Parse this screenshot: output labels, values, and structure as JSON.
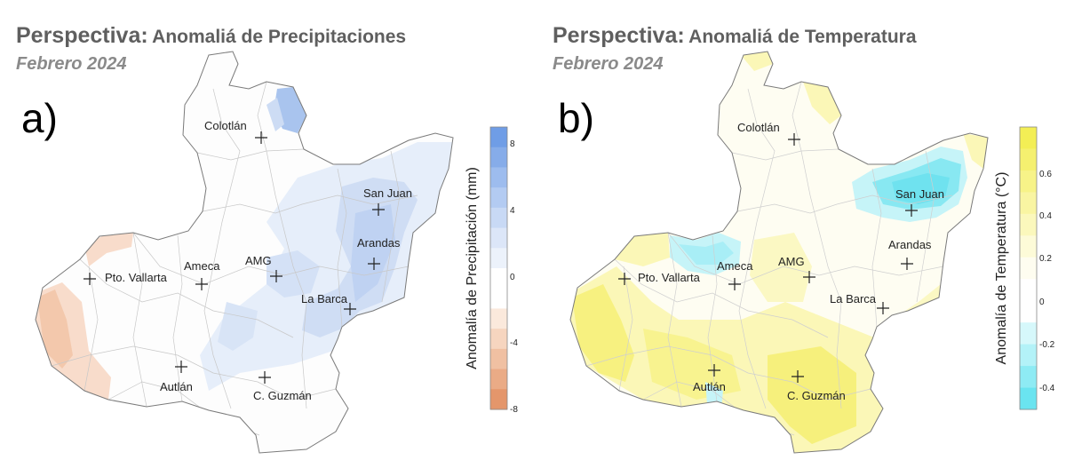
{
  "panels": [
    {
      "title_lead": "Perspectiva:",
      "title_rest": "Anomaliá de Precipitaciones",
      "subtitle": "Febrero 2024",
      "label": "a)",
      "colorbar": {
        "title": "Anomalía de Precipitación (mm)",
        "ticks": [
          "8",
          "4",
          "0",
          "-4",
          "-8"
        ],
        "colors": [
          "#6f9de6",
          "#86ace9",
          "#9dbcee",
          "#b3cbf2",
          "#c8d9f5",
          "#dce6f8",
          "#ecf2fb",
          "#ffffff",
          "#ffffff",
          "#fbe9dc",
          "#f6d5bf",
          "#f0c0a2",
          "#eaab86",
          "#e4966b"
        ]
      },
      "cities": [
        {
          "name": "Colotlán"
        },
        {
          "name": "San Juan"
        },
        {
          "name": "Arandas"
        },
        {
          "name": "AMG"
        },
        {
          "name": "Ameca"
        },
        {
          "name": "Pto. Vallarta"
        },
        {
          "name": "La Barca"
        },
        {
          "name": "Autlán"
        },
        {
          "name": "C. Guzmán"
        }
      ]
    },
    {
      "title_lead": "Perspectiva:",
      "title_rest": "Anomaliá de Temperatura",
      "subtitle": "Febrero 2024",
      "label": "b)",
      "colorbar": {
        "title": "Anomalía de Temperatura (°C)",
        "ticks": [
          "0.6",
          "0.4",
          "0.2",
          "0",
          "-0.2",
          "-0.4"
        ],
        "colors": [
          "#f3ee55",
          "#f5f06f",
          "#f7f388",
          "#f9f5a2",
          "#fbf8bc",
          "#fdfbd8",
          "#fefdf0",
          "#ffffff",
          "#ffffff",
          "#d6f8fb",
          "#b3f2f8",
          "#8eebf4",
          "#6ae4f0"
        ]
      },
      "cities": [
        {
          "name": "Colotlán"
        },
        {
          "name": "San Juan"
        },
        {
          "name": "Arandas"
        },
        {
          "name": "AMG"
        },
        {
          "name": "Ameca"
        },
        {
          "name": "Pto. Vallarta"
        },
        {
          "name": "La Barca"
        },
        {
          "name": "Autlán"
        },
        {
          "name": "C. Guzmán"
        }
      ]
    }
  ]
}
